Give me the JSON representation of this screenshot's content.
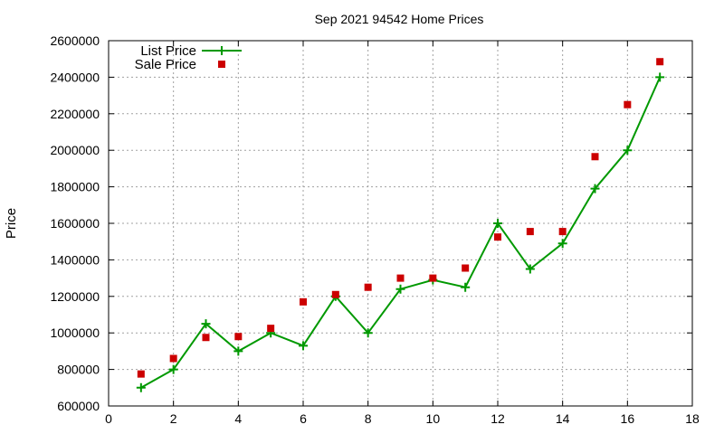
{
  "chart_data": {
    "type": "line",
    "title": "Sep 2021 94542 Home Prices",
    "xlabel": "",
    "ylabel": "Price",
    "xlim": [
      0,
      18
    ],
    "ylim": [
      600000,
      2600000
    ],
    "x_ticks": [
      0,
      2,
      4,
      6,
      8,
      10,
      12,
      14,
      16,
      18
    ],
    "y_ticks": [
      600000,
      800000,
      1000000,
      1200000,
      1400000,
      1600000,
      1800000,
      2000000,
      2200000,
      2400000,
      2600000
    ],
    "grid": true,
    "legend_position": "top-left",
    "series": [
      {
        "name": "List Price",
        "style": "line+cross",
        "color": "#009900",
        "x": [
          1,
          2,
          3,
          4,
          5,
          6,
          7,
          8,
          9,
          10,
          11,
          12,
          13,
          14,
          15,
          16,
          17
        ],
        "values": [
          700000,
          800000,
          1050000,
          900000,
          1000000,
          930000,
          1200000,
          1000000,
          1240000,
          1290000,
          1250000,
          1600000,
          1350000,
          1490000,
          1790000,
          2000000,
          2400000
        ]
      },
      {
        "name": "Sale Price",
        "style": "square",
        "color": "#cc0000",
        "x": [
          1,
          2,
          3,
          4,
          5,
          6,
          7,
          8,
          9,
          10,
          11,
          12,
          13,
          14,
          15,
          16,
          17
        ],
        "values": [
          775000,
          860000,
          975000,
          980000,
          1025000,
          1170000,
          1210000,
          1250000,
          1300000,
          1300000,
          1355000,
          1525000,
          1555000,
          1555000,
          1965000,
          2250000,
          2485000
        ]
      }
    ]
  }
}
